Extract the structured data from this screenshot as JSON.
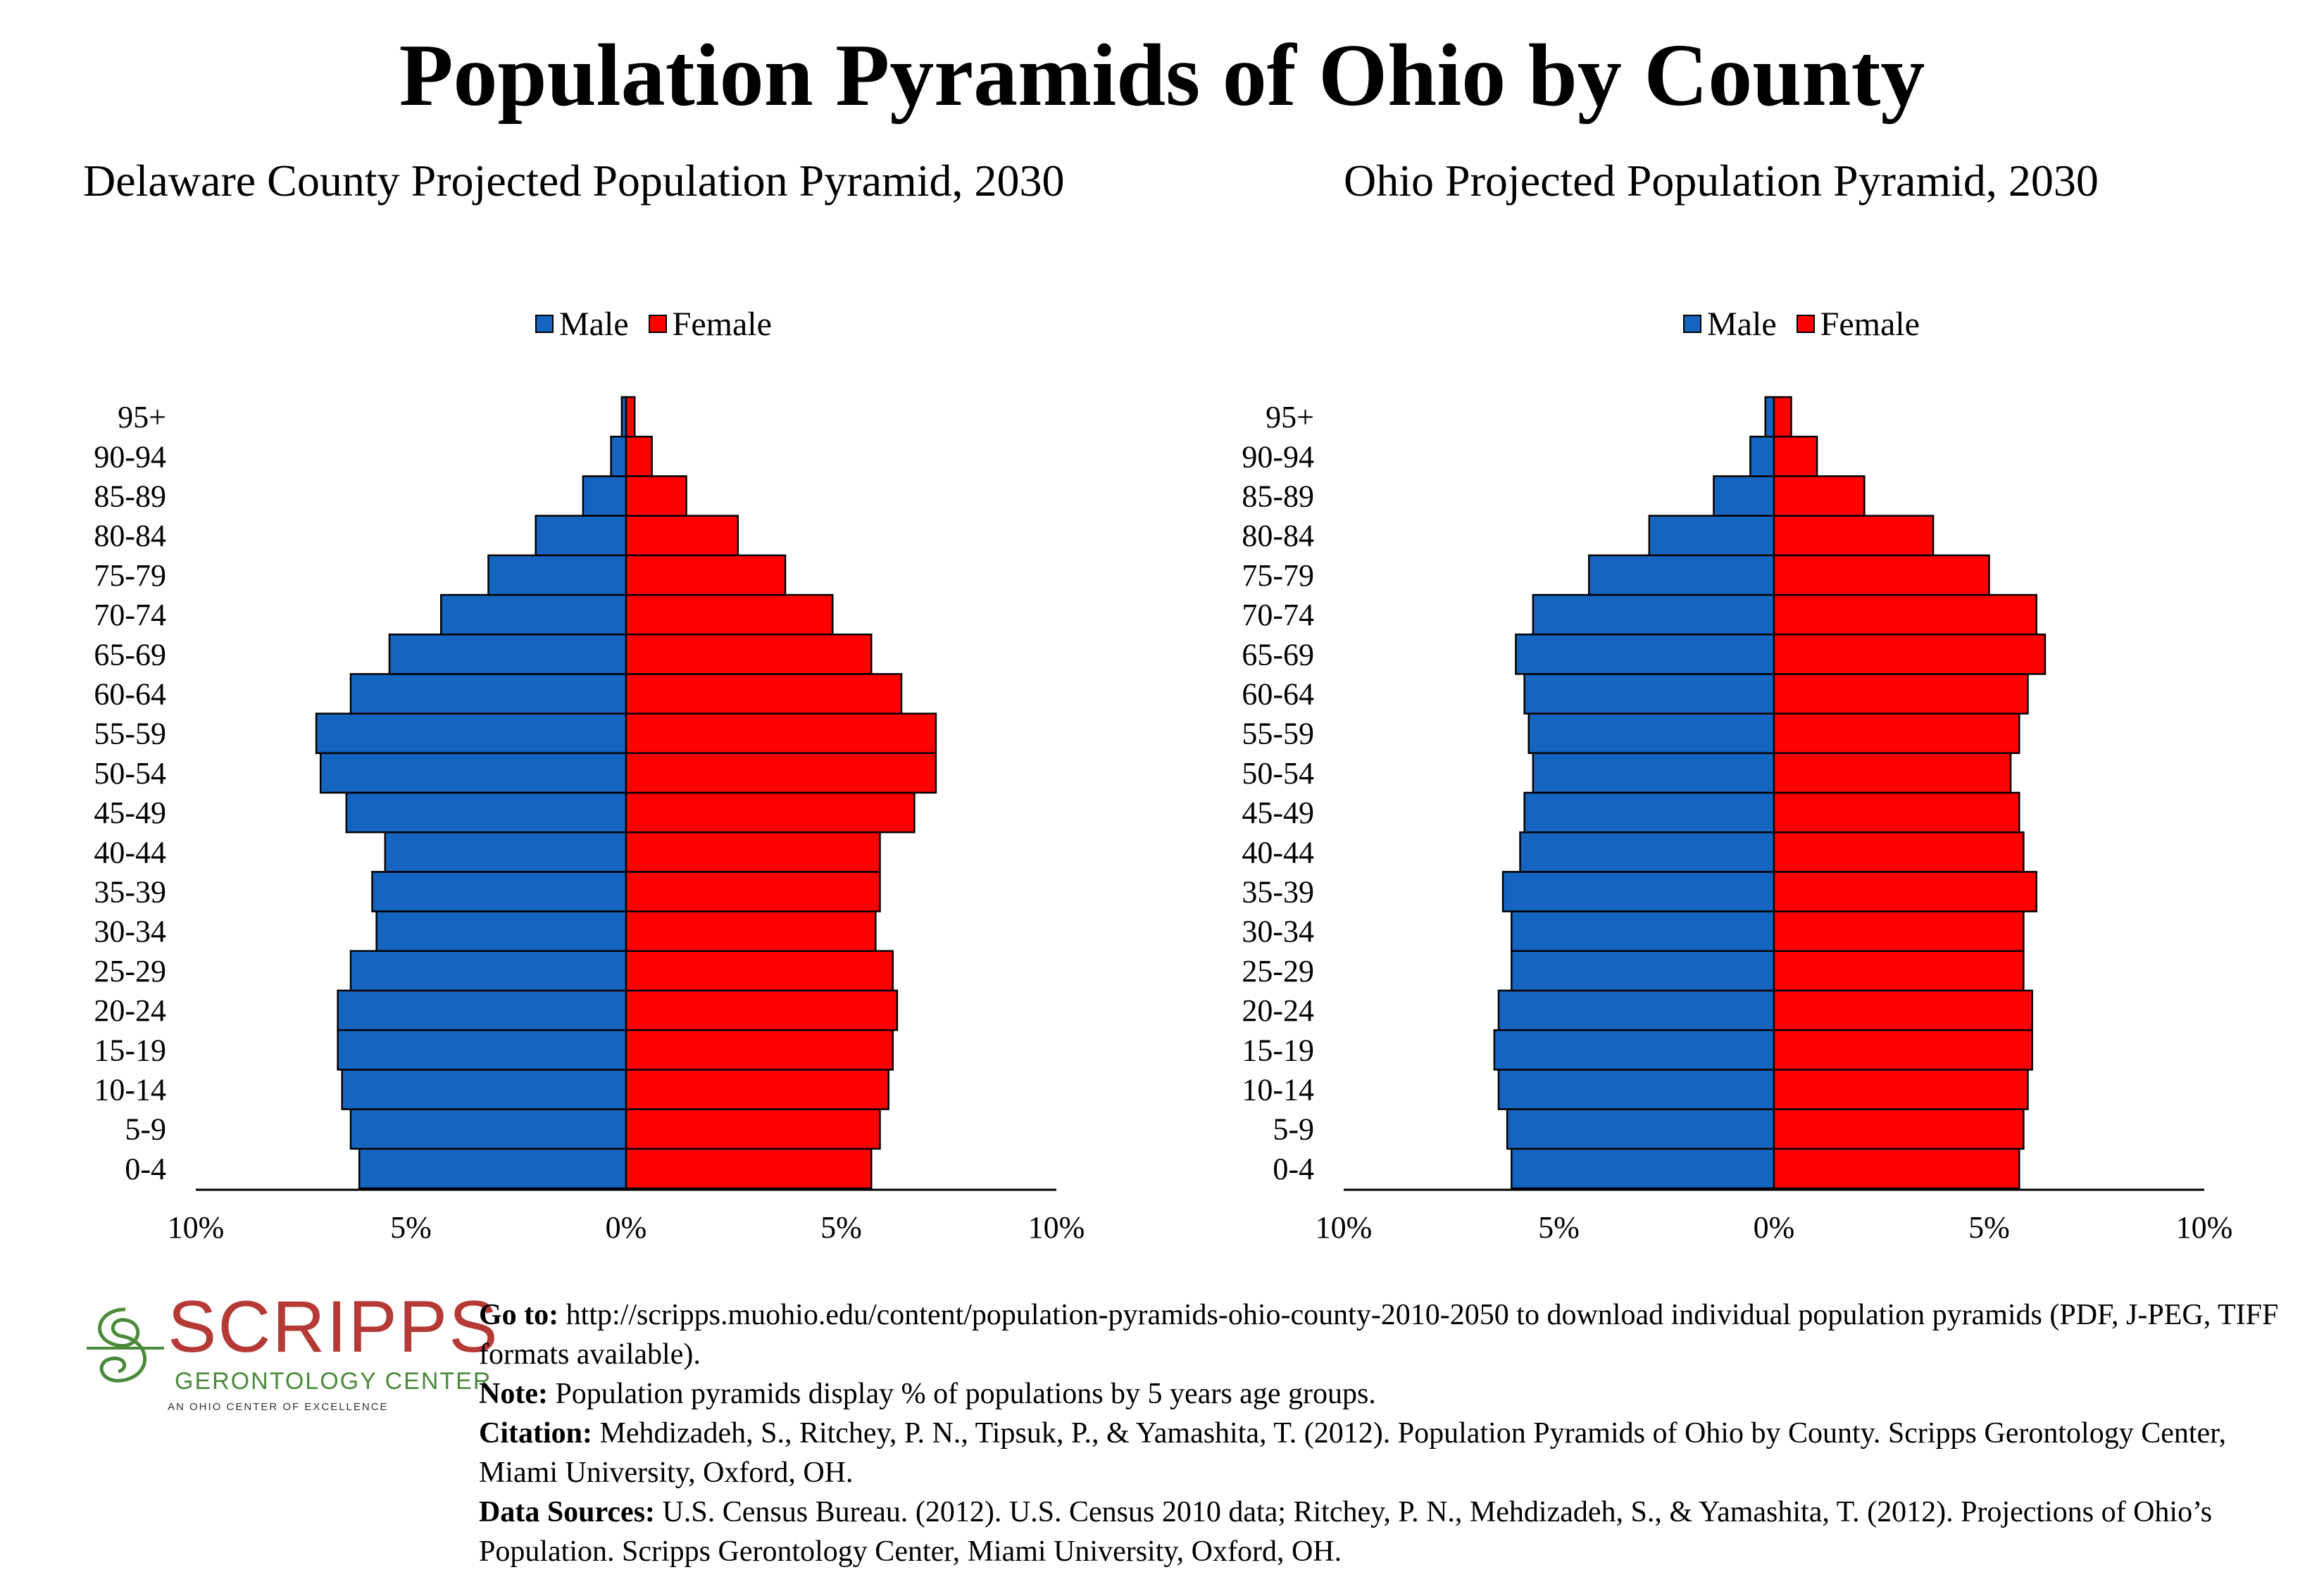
{
  "page": {
    "title": "Population Pyramids of Ohio by County"
  },
  "colors": {
    "male": "#1565c0",
    "female": "#ff0000",
    "logo_red": "#b53a36",
    "logo_green": "#4a8a3a"
  },
  "chart_data": [
    {
      "type": "bar",
      "orientation": "horizontal-pyramid",
      "title": "Delaware County Projected Population Pyramid, 2030",
      "categories": [
        "0-4",
        "5-9",
        "10-14",
        "15-19",
        "20-24",
        "25-29",
        "30-34",
        "35-39",
        "40-44",
        "45-49",
        "50-54",
        "55-59",
        "60-64",
        "65-69",
        "70-74",
        "75-79",
        "80-84",
        "85-89",
        "90-94",
        "95+"
      ],
      "series": [
        {
          "name": "Male",
          "values": [
            6.2,
            6.4,
            6.6,
            6.7,
            6.7,
            6.4,
            5.8,
            5.9,
            5.6,
            6.5,
            7.1,
            7.2,
            6.4,
            5.5,
            4.3,
            3.2,
            2.1,
            1.0,
            0.35,
            0.1
          ]
        },
        {
          "name": "Female",
          "values": [
            5.7,
            5.9,
            6.1,
            6.2,
            6.3,
            6.2,
            5.8,
            5.9,
            5.9,
            6.7,
            7.2,
            7.2,
            6.4,
            5.7,
            4.8,
            3.7,
            2.6,
            1.4,
            0.6,
            0.2
          ]
        }
      ],
      "legend": [
        "Male",
        "Female"
      ],
      "legend_position": "top",
      "xlim": [
        -10,
        10
      ],
      "xticks": [
        "10%",
        "5%",
        "0%",
        "5%",
        "10%"
      ]
    },
    {
      "type": "bar",
      "orientation": "horizontal-pyramid",
      "title": "Ohio Projected Population Pyramid, 2030",
      "categories": [
        "0-4",
        "5-9",
        "10-14",
        "15-19",
        "20-24",
        "25-29",
        "30-34",
        "35-39",
        "40-44",
        "45-49",
        "50-54",
        "55-59",
        "60-64",
        "65-69",
        "70-74",
        "75-79",
        "80-84",
        "85-89",
        "90-94",
        "95+"
      ],
      "series": [
        {
          "name": "Male",
          "values": [
            6.1,
            6.2,
            6.4,
            6.5,
            6.4,
            6.1,
            6.1,
            6.3,
            5.9,
            5.8,
            5.6,
            5.7,
            5.8,
            6.0,
            5.6,
            4.3,
            2.9,
            1.4,
            0.55,
            0.2
          ]
        },
        {
          "name": "Female",
          "values": [
            5.7,
            5.8,
            5.9,
            6.0,
            6.0,
            5.8,
            5.8,
            6.1,
            5.8,
            5.7,
            5.5,
            5.7,
            5.9,
            6.3,
            6.1,
            5.0,
            3.7,
            2.1,
            1.0,
            0.4
          ]
        }
      ],
      "legend": [
        "Male",
        "Female"
      ],
      "legend_position": "top",
      "xlim": [
        -10,
        10
      ],
      "xticks": [
        "10%",
        "5%",
        "0%",
        "5%",
        "10%"
      ]
    }
  ],
  "footer": {
    "logo": {
      "word": "SCRIPPS",
      "sub": "GERONTOLOGY CENTER",
      "tagline": "AN OHIO CENTER OF EXCELLENCE"
    },
    "goto_label": "Go to:",
    "goto_text": " http://scripps.muohio.edu/content/population-pyramids-ohio-county-2010-2050 to download individual population pyramids (PDF, J-PEG, TIFF formats available).",
    "note_label": "Note:",
    "note_text": " Population pyramids display % of populations by 5 years age groups.",
    "citation_label": "Citation:",
    "citation_text": " Mehdizadeh, S., Ritchey, P. N., Tipsuk, P., & Yamashita, T. (2012). Population Pyramids of Ohio by County. Scripps Gerontology Center, Miami University, Oxford, OH.",
    "sources_label": "Data Sources:",
    "sources_text": " U.S. Census Bureau. (2012). U.S. Census 2010 data; Ritchey, P. N., Mehdizadeh, S., & Yamashita, T. (2012). Projections of Ohio’s Population. Scripps Gerontology Center, Miami University, Oxford, OH."
  }
}
